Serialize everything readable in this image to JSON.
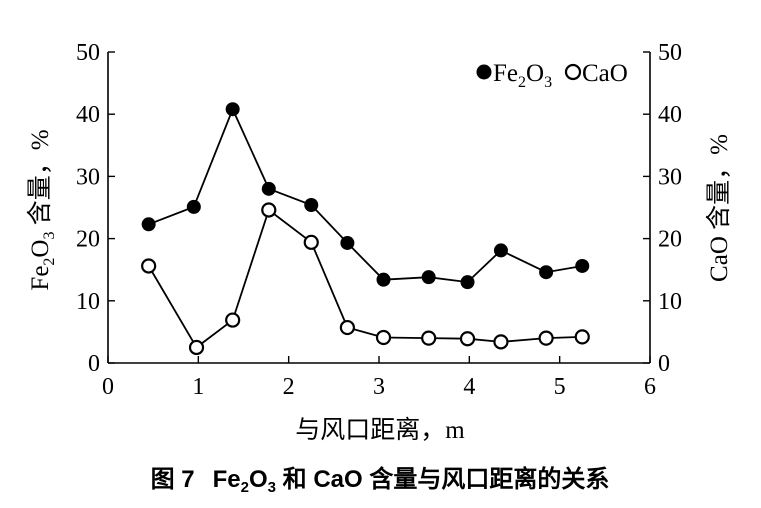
{
  "chart_data": {
    "type": "line",
    "caption": {
      "label": "图 7",
      "fe_main": "Fe",
      "fe_sub1": "2",
      "fe_mid": "O",
      "fe_sub2": "3",
      "rest": " 和 CaO 含量与风口距离的关系"
    },
    "xlabel": "与风口距离，m",
    "ylabel_left": {
      "fe_main": "Fe",
      "fe_sub1": "2",
      "fe_mid": "O",
      "fe_sub2": "3",
      "rest": " 含量，%"
    },
    "ylabel_right": "CaO 含量，%",
    "xlim": [
      0,
      6
    ],
    "ylim": [
      0,
      50
    ],
    "x_ticks": [
      "0",
      "1",
      "2",
      "3",
      "4",
      "5",
      "6"
    ],
    "y_ticks": [
      "0",
      "10",
      "20",
      "30",
      "40",
      "50"
    ],
    "legend": {
      "placement": "top-right",
      "entries": [
        {
          "fe_main": "Fe",
          "fe_sub1": "2",
          "fe_mid": "O",
          "fe_sub2": "3",
          "marker": "filled"
        },
        {
          "label": "CaO",
          "marker": "open"
        }
      ]
    },
    "series": [
      {
        "key": "Fe2O3",
        "marker": "filled",
        "x": [
          0.45,
          0.95,
          1.38,
          1.78,
          2.25,
          2.65,
          3.05,
          3.55,
          3.98,
          4.35,
          4.85,
          5.25
        ],
        "y": [
          22.3,
          25.1,
          40.8,
          28.0,
          25.4,
          19.3,
          13.4,
          13.8,
          13.0,
          18.1,
          14.6,
          15.6
        ]
      },
      {
        "key": "CaO",
        "marker": "open",
        "x": [
          0.45,
          0.98,
          1.38,
          1.78,
          2.25,
          2.65,
          3.05,
          3.55,
          3.98,
          4.35,
          4.85,
          5.25
        ],
        "y": [
          15.6,
          2.5,
          6.9,
          24.6,
          19.4,
          5.7,
          4.1,
          4.0,
          3.9,
          3.4,
          4.0,
          4.2
        ]
      }
    ]
  }
}
